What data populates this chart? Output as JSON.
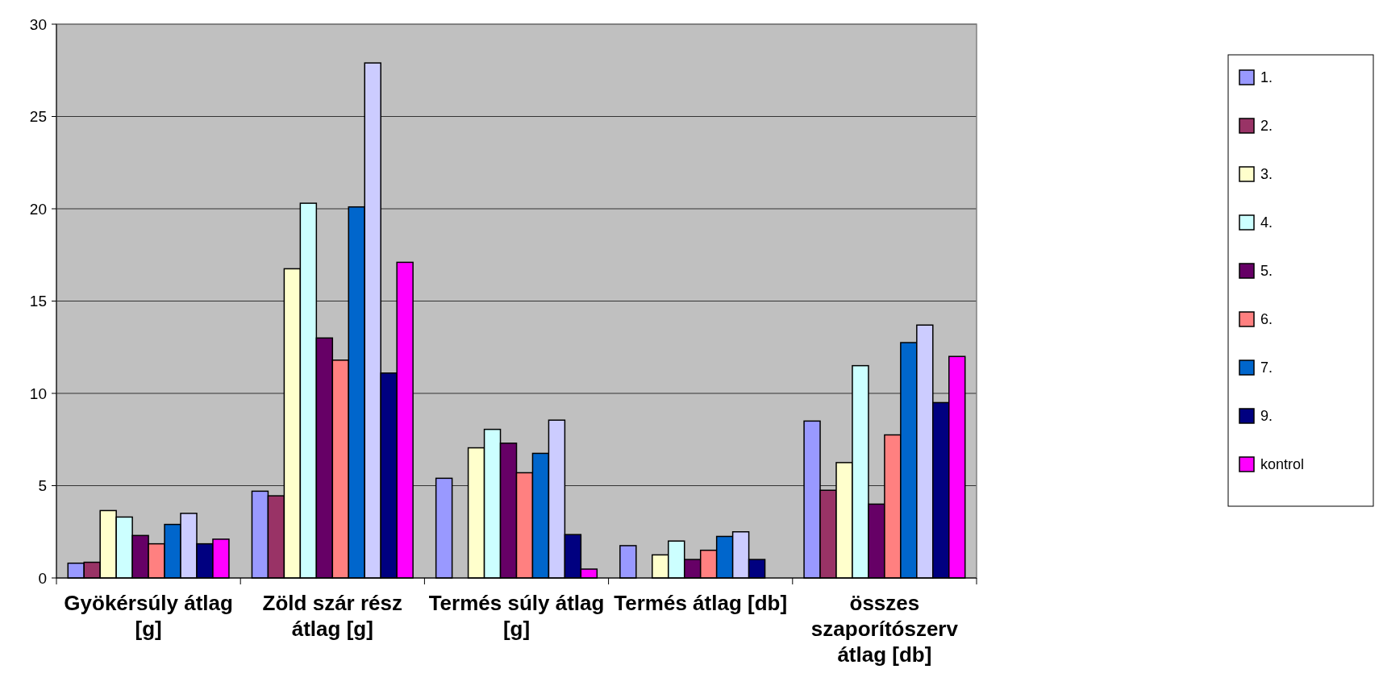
{
  "chart_data": {
    "type": "bar",
    "categories": [
      "Gyökérsúly átlag [g]",
      "Zöld szár rész átlag [g]",
      "Termés súly átlag [g]",
      "Termés átlag [db]",
      "összes szaporítószerv átlag [db]"
    ],
    "series": [
      {
        "name": "1.",
        "color": "#9999ff",
        "values": [
          0.8,
          4.7,
          5.4,
          1.75,
          8.5
        ]
      },
      {
        "name": "2.",
        "color": "#993366",
        "values": [
          0.85,
          4.45,
          null,
          null,
          4.75
        ]
      },
      {
        "name": "3.",
        "color": "#ffffcc",
        "values": [
          3.65,
          16.75,
          7.05,
          1.25,
          6.25
        ]
      },
      {
        "name": "4.",
        "color": "#ccffff",
        "values": [
          3.3,
          20.3,
          8.05,
          2.0,
          11.5
        ]
      },
      {
        "name": "5.",
        "color": "#660066",
        "values": [
          2.3,
          13.0,
          7.3,
          1.0,
          4.0
        ]
      },
      {
        "name": "6.",
        "color": "#ff8080",
        "values": [
          1.85,
          11.8,
          5.7,
          1.5,
          7.75
        ]
      },
      {
        "name": "7.",
        "color": "#0066cc",
        "values": [
          2.9,
          20.1,
          6.75,
          2.25,
          12.75
        ]
      },
      {
        "color": "#ccccff",
        "values": [
          3.5,
          27.9,
          8.55,
          2.5,
          13.7
        ]
      },
      {
        "name": "9.",
        "color": "#000080",
        "values": [
          1.85,
          11.1,
          2.35,
          1.0,
          9.5
        ]
      },
      {
        "name": "kontrol",
        "color": "#ff00ff",
        "values": [
          2.1,
          17.1,
          0.48,
          null,
          12.0
        ]
      }
    ],
    "ylim": [
      0,
      30
    ],
    "yticks": [
      0,
      5,
      10,
      15,
      20,
      25,
      30
    ],
    "grid": "y",
    "legend": "right"
  }
}
